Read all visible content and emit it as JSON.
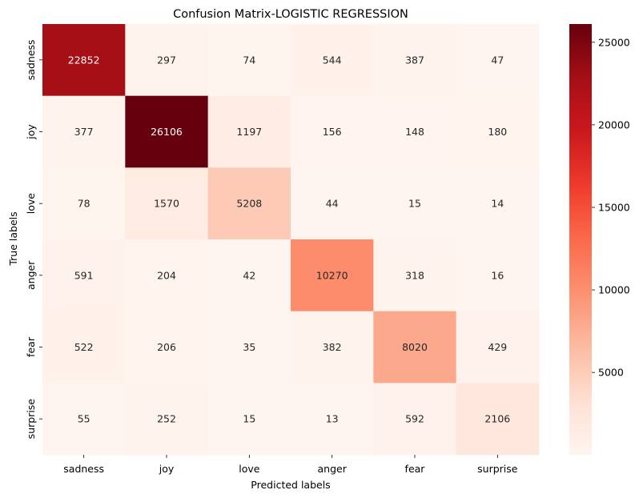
{
  "chart_data": {
    "type": "heatmap",
    "title": "Confusion Matrix-LOGISTIC REGRESSION",
    "xlabel": "Predicted labels",
    "ylabel": "True labels",
    "x_categories": [
      "sadness",
      "joy",
      "love",
      "anger",
      "fear",
      "surprise"
    ],
    "y_categories": [
      "sadness",
      "joy",
      "love",
      "anger",
      "fear",
      "surprise"
    ],
    "values": [
      [
        22852,
        297,
        74,
        544,
        387,
        47
      ],
      [
        377,
        26106,
        1197,
        156,
        148,
        180
      ],
      [
        78,
        1570,
        5208,
        44,
        15,
        14
      ],
      [
        591,
        204,
        42,
        10270,
        318,
        16
      ],
      [
        522,
        206,
        35,
        382,
        8020,
        429
      ],
      [
        55,
        252,
        15,
        13,
        592,
        2106
      ]
    ],
    "colormap": "Reds",
    "colorbar": {
      "range": [
        13,
        26106
      ],
      "ticks": [
        5000,
        10000,
        15000,
        20000,
        25000
      ],
      "tick_labels": [
        "5000",
        "10000",
        "15000",
        "20000",
        "25000"
      ]
    },
    "grid": false,
    "legend": "none"
  }
}
